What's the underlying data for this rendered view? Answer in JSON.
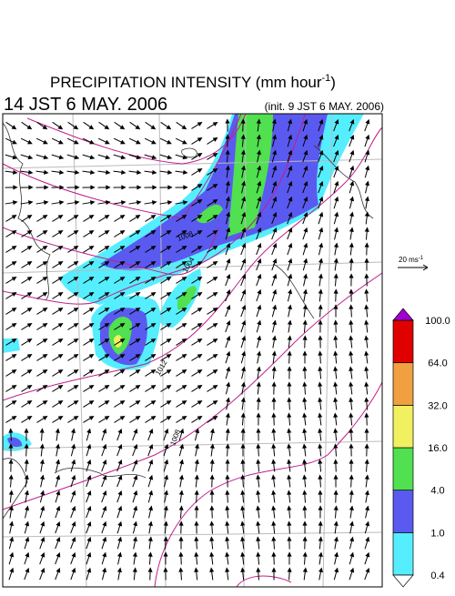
{
  "header": {
    "title": "PRECIPITATION INTENSITY (mm hour",
    "title_exponent": "-1",
    "title_close": ")",
    "valid_time": "14 JST 6 MAY. 2006",
    "init_time": "(init. 9 JST 6 MAY. 2006)"
  },
  "wind_scale": {
    "label": "20 ms",
    "exponent": "-1"
  },
  "colorbar": {
    "labels": [
      "0.4",
      "1.0",
      "4.0",
      "16.0",
      "32.0",
      "64.0",
      "100.0"
    ],
    "colors": [
      "#55eeff",
      "#5a5af0",
      "#50e050",
      "#f0f060",
      "#f0a040",
      "#e00000"
    ],
    "over_color": "#a000d0"
  },
  "isobars": [
    "1004",
    "1008",
    "1012",
    "1008"
  ]
}
